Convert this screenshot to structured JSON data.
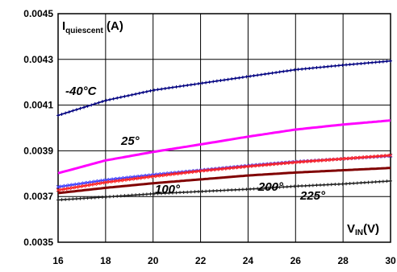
{
  "chart_data": {
    "type": "line",
    "ylabel": {
      "main": "I",
      "sub": "quiescent",
      "unit": " (A)"
    },
    "xlabel": {
      "main": "V",
      "sub": "IN",
      "unit": "(V)"
    },
    "xlim": [
      16,
      30
    ],
    "ylim": [
      0.0035,
      0.0045
    ],
    "x_ticks": [
      16,
      18,
      20,
      22,
      24,
      26,
      28,
      30
    ],
    "y_ticks": [
      0.0035,
      0.0037,
      0.0039,
      0.0041,
      0.0043,
      0.0045
    ],
    "x_tick_labels": [
      "16",
      "18",
      "20",
      "22",
      "24",
      "26",
      "28",
      "30"
    ],
    "y_tick_labels": [
      "0.0035",
      "0.0037",
      "0.0039",
      "0.0041",
      "0.0043",
      "0.0045"
    ],
    "grid": true,
    "series": [
      {
        "name": "-40°C",
        "color": "#000080",
        "marker": "plus",
        "x": [
          16,
          18,
          20,
          22,
          24,
          26,
          28,
          30
        ],
        "y": [
          0.004055,
          0.00412,
          0.004165,
          0.004195,
          0.004225,
          0.004255,
          0.004275,
          0.004293
        ]
      },
      {
        "name": "25°",
        "color": "#ff00ff",
        "marker": "none",
        "x": [
          16,
          18,
          20,
          22,
          24,
          26,
          28,
          30
        ],
        "y": [
          0.003802,
          0.003858,
          0.003895,
          0.003928,
          0.003962,
          0.003993,
          0.004015,
          0.004033
        ]
      },
      {
        "name": "100°",
        "color": "#4040ff",
        "marker": "cross",
        "x": [
          16,
          18,
          20,
          22,
          24,
          26,
          28,
          30
        ],
        "y": [
          0.003742,
          0.003772,
          0.003795,
          0.003815,
          0.003835,
          0.003852,
          0.003865,
          0.003878
        ]
      },
      {
        "name": "",
        "color": "#ff2020",
        "marker": "cross",
        "x": [
          16,
          18,
          20,
          22,
          24,
          26,
          28,
          30
        ],
        "y": [
          0.003728,
          0.003762,
          0.003788,
          0.003812,
          0.003832,
          0.00385,
          0.003865,
          0.00388
        ]
      },
      {
        "name": "200°",
        "color": "#800000",
        "marker": "none",
        "x": [
          16,
          18,
          20,
          22,
          24,
          26,
          28,
          30
        ],
        "y": [
          0.003715,
          0.003738,
          0.003758,
          0.003775,
          0.003792,
          0.003805,
          0.003815,
          0.003825
        ]
      },
      {
        "name": "225°",
        "color": "#202020",
        "marker": "plus",
        "x": [
          16,
          18,
          20,
          22,
          24,
          26,
          28,
          30
        ],
        "y": [
          0.003685,
          0.003698,
          0.003712,
          0.003722,
          0.003732,
          0.003745,
          0.003755,
          0.003768
        ]
      }
    ],
    "series_labels": [
      "-40°C",
      "25°",
      "100°",
      "200°",
      "225°"
    ]
  }
}
